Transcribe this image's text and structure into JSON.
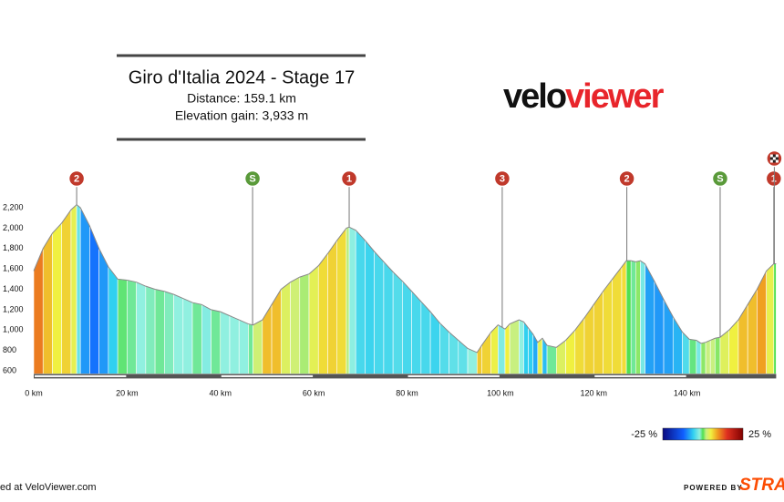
{
  "chart_data": {
    "type": "elevation_profile",
    "title": "Giro d'Italia 2024 - Stage 17",
    "distance": "Distance: 159.1 km",
    "elevation_gain": "Elevation gain: 3,933 m",
    "logo": {
      "part1": "velo",
      "part2": "viewer"
    },
    "x": [
      0,
      2,
      4,
      6,
      8,
      9.2,
      10,
      12,
      14,
      16,
      18,
      20,
      22,
      24,
      26,
      28,
      30,
      32,
      34,
      36,
      38,
      40,
      42,
      44,
      46,
      47,
      49,
      51,
      53,
      55,
      57,
      59,
      61,
      63,
      65,
      67,
      67.6,
      69,
      71,
      73,
      75,
      77,
      79,
      81,
      83,
      85,
      87,
      89,
      91,
      93,
      95,
      96,
      98,
      99.5,
      101,
      102,
      104,
      105,
      106,
      107,
      108,
      109,
      110,
      112,
      114,
      116,
      118,
      120,
      122,
      124,
      126,
      127,
      128,
      129,
      130,
      131,
      133,
      135,
      137,
      139,
      140.5,
      142,
      143,
      144,
      145,
      146,
      147.1,
      149,
      151,
      153,
      155,
      157,
      158.6,
      159.1
    ],
    "elevation": [
      1580,
      1800,
      1950,
      2050,
      2180,
      2230,
      2200,
      2020,
      1800,
      1620,
      1500,
      1490,
      1470,
      1430,
      1400,
      1380,
      1350,
      1310,
      1270,
      1250,
      1200,
      1180,
      1140,
      1100,
      1060,
      1050,
      1100,
      1250,
      1400,
      1470,
      1520,
      1550,
      1630,
      1750,
      1880,
      2000,
      2010,
      1980,
      1880,
      1770,
      1670,
      1570,
      1480,
      1380,
      1280,
      1180,
      1070,
      980,
      900,
      820,
      780,
      850,
      980,
      1050,
      1010,
      1060,
      1100,
      1080,
      1020,
      960,
      880,
      920,
      850,
      830,
      900,
      1000,
      1120,
      1250,
      1380,
      1500,
      1620,
      1680,
      1680,
      1670,
      1680,
      1650,
      1480,
      1300,
      1130,
      980,
      910,
      900,
      870,
      880,
      900,
      920,
      930,
      1000,
      1100,
      1250,
      1400,
      1580,
      1650,
      1650
    ],
    "xlim": [
      0,
      160
    ],
    "ylim": [
      570,
      2250
    ],
    "xticks": [
      {
        "value": 0,
        "label": "0 km"
      },
      {
        "value": 20,
        "label": "20 km"
      },
      {
        "value": 40,
        "label": "40 km"
      },
      {
        "value": 60,
        "label": "60 km"
      },
      {
        "value": 80,
        "label": "80 km"
      },
      {
        "value": 100,
        "label": "100 km"
      },
      {
        "value": 120,
        "label": "120 km"
      },
      {
        "value": 140,
        "label": "140 km"
      }
    ],
    "yticks": [
      600,
      800,
      {
        "value": 1000,
        "label": "1,000"
      },
      {
        "value": 1200,
        "label": "1,200"
      },
      {
        "value": 1400,
        "label": "1,400"
      },
      {
        "value": 1600,
        "label": "1,600"
      },
      {
        "value": 1800,
        "label": "1,800"
      },
      {
        "value": 2000,
        "label": "2,000"
      },
      {
        "value": 2200,
        "label": "2,200"
      }
    ],
    "markers": [
      {
        "km": 9.2,
        "label": "2",
        "color": "#c0392b"
      },
      {
        "km": 46.9,
        "label": "S",
        "color": "#5a9a3a"
      },
      {
        "km": 67.6,
        "label": "1",
        "color": "#c0392b"
      },
      {
        "km": 100.4,
        "label": "3",
        "color": "#c0392b"
      },
      {
        "km": 127.1,
        "label": "2",
        "color": "#c0392b"
      },
      {
        "km": 147.1,
        "label": "S",
        "color": "#5a9a3a"
      },
      {
        "km": 158.6,
        "label": "1",
        "color": "#c0392b"
      }
    ],
    "colorscale": {
      "ticks": [
        {
          "value": -25,
          "label": "-25 %"
        },
        {
          "value": 25,
          "label": "25 %"
        }
      ],
      "stops": [
        [
          -25,
          "#0a0a80"
        ],
        [
          -12,
          "#1060ff"
        ],
        [
          -6,
          "#30d0f0"
        ],
        [
          -2,
          "#90f0e0"
        ],
        [
          0,
          "#50e050"
        ],
        [
          2,
          "#c8f080"
        ],
        [
          5,
          "#f0f040"
        ],
        [
          9,
          "#f0a020"
        ],
        [
          15,
          "#e03020"
        ],
        [
          25,
          "#800000"
        ]
      ]
    },
    "footer": "ed at VeloViewer.com",
    "powered_by": "POWERED BY",
    "strava": "STRA"
  }
}
